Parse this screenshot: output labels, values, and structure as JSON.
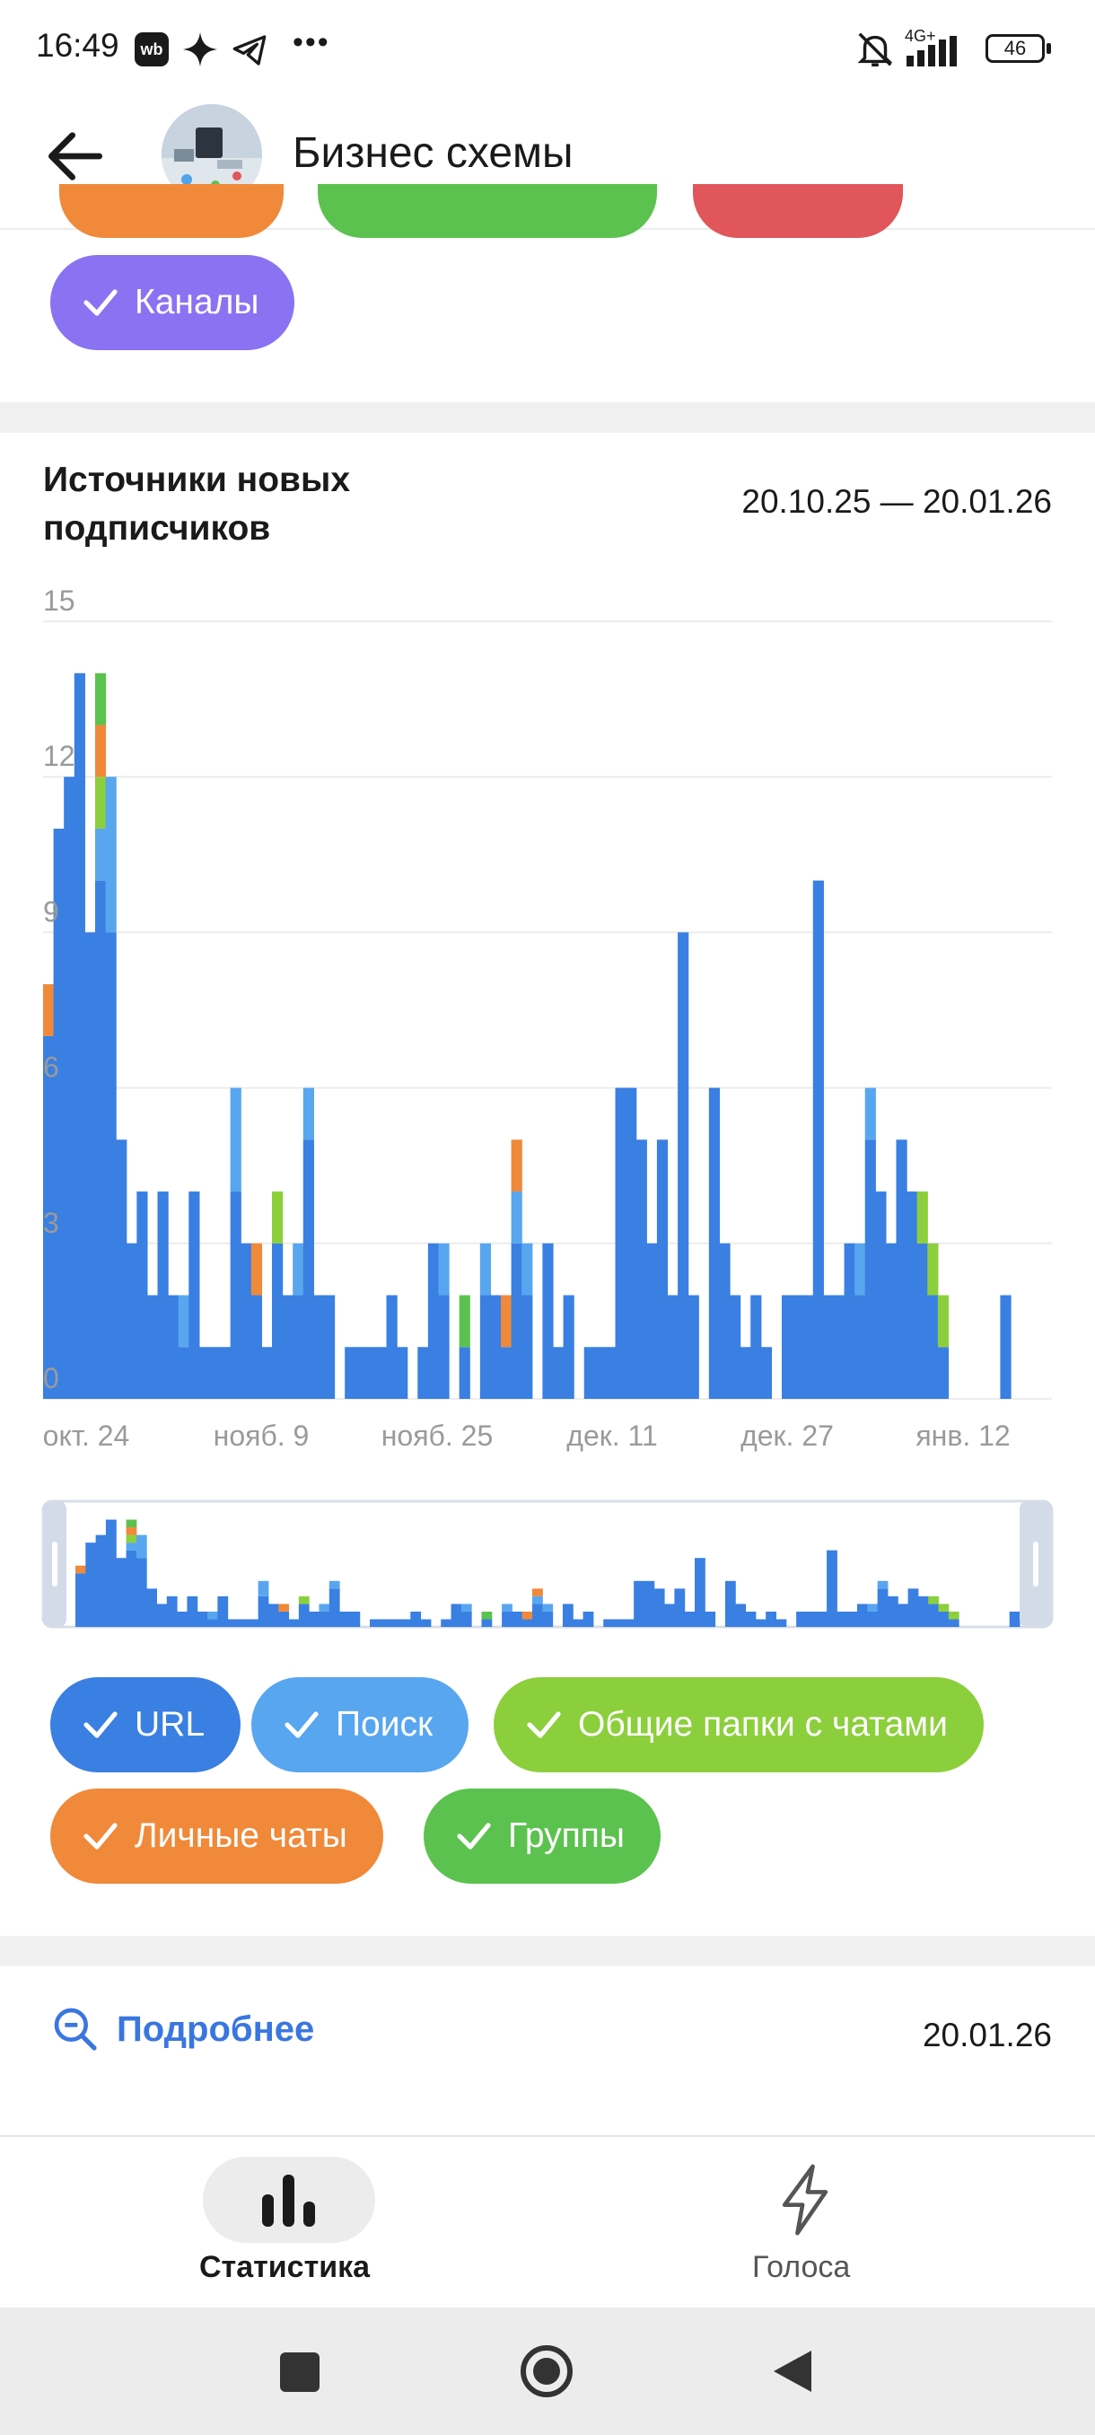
{
  "status_bar": {
    "time": "16:49",
    "network": "4G+",
    "battery": "46"
  },
  "header": {
    "title": "Бизнес схемы",
    "back_icon": "arrow-left-icon"
  },
  "top_filters": {
    "visible_chip": {
      "label": "Каналы",
      "color": "#8a73f2"
    },
    "peeking_colors": [
      "#f0893a",
      "#5cc24f",
      "#e0565a"
    ]
  },
  "chart_card": {
    "title_line1": "Источники новых",
    "title_line2": "подписчиков",
    "date_range": "20.10.25 — 20.01.26"
  },
  "legend": [
    {
      "label": "URL",
      "color": "#3a7fe2"
    },
    {
      "label": "Поиск",
      "color": "#58a6ef"
    },
    {
      "label": "Общие папки с чатами",
      "color": "#8ccf3c"
    },
    {
      "label": "Личные чаты",
      "color": "#f0893a"
    },
    {
      "label": "Группы",
      "color": "#5cc24f"
    }
  ],
  "chart_data": {
    "type": "bar",
    "stacked": true,
    "ylim": [
      0,
      15
    ],
    "yticks": [
      "15",
      "12",
      "9",
      "6",
      "3",
      "0"
    ],
    "xticks": [
      "окт. 24",
      "нояб. 9",
      "нояб. 25",
      "дек. 11",
      "дек. 27",
      "янв. 12"
    ],
    "grid": true,
    "series": [
      {
        "name": "URL",
        "color": "#3a7fe2",
        "values": [
          7,
          11,
          12,
          14,
          9,
          10,
          9,
          5,
          3,
          4,
          2,
          4,
          2,
          1,
          4,
          1,
          1,
          1,
          4,
          3,
          2,
          1,
          3,
          2,
          2,
          5,
          2,
          2,
          0,
          1,
          1,
          1,
          1,
          2,
          1,
          0,
          1,
          3,
          2,
          0,
          1,
          0,
          2,
          2,
          1,
          3,
          2,
          0,
          3,
          1,
          2,
          0,
          1,
          1,
          1,
          6,
          6,
          5,
          3,
          5,
          2,
          9,
          2,
          0,
          6,
          3,
          2,
          1,
          2,
          1,
          0,
          2,
          2,
          2,
          10,
          2,
          2,
          3,
          2,
          5,
          4,
          3,
          5,
          4,
          3,
          2,
          1,
          0,
          0,
          0,
          0,
          0,
          2
        ]
      },
      {
        "name": "Поиск",
        "color": "#58a6ef",
        "values": [
          0,
          0,
          0,
          0,
          0,
          1,
          3,
          0,
          0,
          0,
          0,
          0,
          0,
          1,
          0,
          0,
          0,
          0,
          2,
          0,
          0,
          0,
          0,
          0,
          1,
          1,
          0,
          0,
          0,
          0,
          0,
          0,
          0,
          0,
          0,
          0,
          0,
          0,
          1,
          0,
          0,
          0,
          1,
          0,
          0,
          1,
          1,
          0,
          0,
          0,
          0,
          0,
          0,
          0,
          0,
          0,
          0,
          0,
          0,
          0,
          0,
          0,
          0,
          0,
          0,
          0,
          0,
          0,
          0,
          0,
          0,
          0,
          0,
          0,
          0,
          0,
          0,
          0,
          1,
          1,
          0,
          0,
          0,
          0,
          0,
          0,
          0,
          0,
          0,
          0,
          0,
          0,
          0
        ]
      },
      {
        "name": "Общие папки с чатами",
        "color": "#8ccf3c",
        "values": [
          0,
          0,
          0,
          0,
          0,
          1,
          0,
          0,
          0,
          0,
          0,
          0,
          0,
          0,
          0,
          0,
          0,
          0,
          0,
          0,
          0,
          0,
          1,
          0,
          0,
          0,
          0,
          0,
          0,
          0,
          0,
          0,
          0,
          0,
          0,
          0,
          0,
          0,
          0,
          0,
          0,
          0,
          0,
          0,
          0,
          0,
          0,
          0,
          0,
          0,
          0,
          0,
          0,
          0,
          0,
          0,
          0,
          0,
          0,
          0,
          0,
          0,
          0,
          0,
          0,
          0,
          0,
          0,
          0,
          0,
          0,
          0,
          0,
          0,
          0,
          0,
          0,
          0,
          0,
          0,
          0,
          0,
          0,
          0,
          1,
          1,
          1,
          0,
          0,
          0,
          0,
          0,
          0
        ]
      },
      {
        "name": "Личные чаты",
        "color": "#f0893a",
        "values": [
          1,
          0,
          0,
          0,
          0,
          1,
          0,
          0,
          0,
          0,
          0,
          0,
          0,
          0,
          0,
          0,
          0,
          0,
          0,
          0,
          1,
          0,
          0,
          0,
          0,
          0,
          0,
          0,
          0,
          0,
          0,
          0,
          0,
          0,
          0,
          0,
          0,
          0,
          0,
          0,
          0,
          0,
          0,
          0,
          1,
          1,
          0,
          0,
          0,
          0,
          0,
          0,
          0,
          0,
          0,
          0,
          0,
          0,
          0,
          0,
          0,
          0,
          0,
          0,
          0,
          0,
          0,
          0,
          0,
          0,
          0,
          0,
          0,
          0,
          0,
          0,
          0,
          0,
          0,
          0,
          0,
          0,
          0,
          0,
          0,
          0,
          0,
          0,
          0,
          0,
          0,
          0,
          0
        ]
      },
      {
        "name": "Группы",
        "color": "#5cc24f",
        "values": [
          0,
          0,
          0,
          0,
          0,
          1,
          0,
          0,
          0,
          0,
          0,
          0,
          0,
          0,
          0,
          0,
          0,
          0,
          0,
          0,
          0,
          0,
          0,
          0,
          0,
          0,
          0,
          0,
          0,
          0,
          0,
          0,
          0,
          0,
          0,
          0,
          0,
          0,
          0,
          0,
          1,
          0,
          0,
          0,
          0,
          0,
          0,
          0,
          0,
          0,
          0,
          0,
          0,
          0,
          0,
          0,
          0,
          0,
          0,
          0,
          0,
          0,
          0,
          0,
          0,
          0,
          0,
          0,
          0,
          0,
          0,
          0,
          0,
          0,
          0,
          0,
          0,
          0,
          0,
          0,
          0,
          0,
          0,
          0,
          0,
          0,
          0,
          0,
          0,
          0,
          0,
          0,
          0
        ]
      }
    ]
  },
  "detail_row": {
    "link_label": "Подробнее",
    "date": "20.01.26"
  },
  "bottom_nav": {
    "stats_label": "Статистика",
    "votes_label": "Голоса"
  }
}
